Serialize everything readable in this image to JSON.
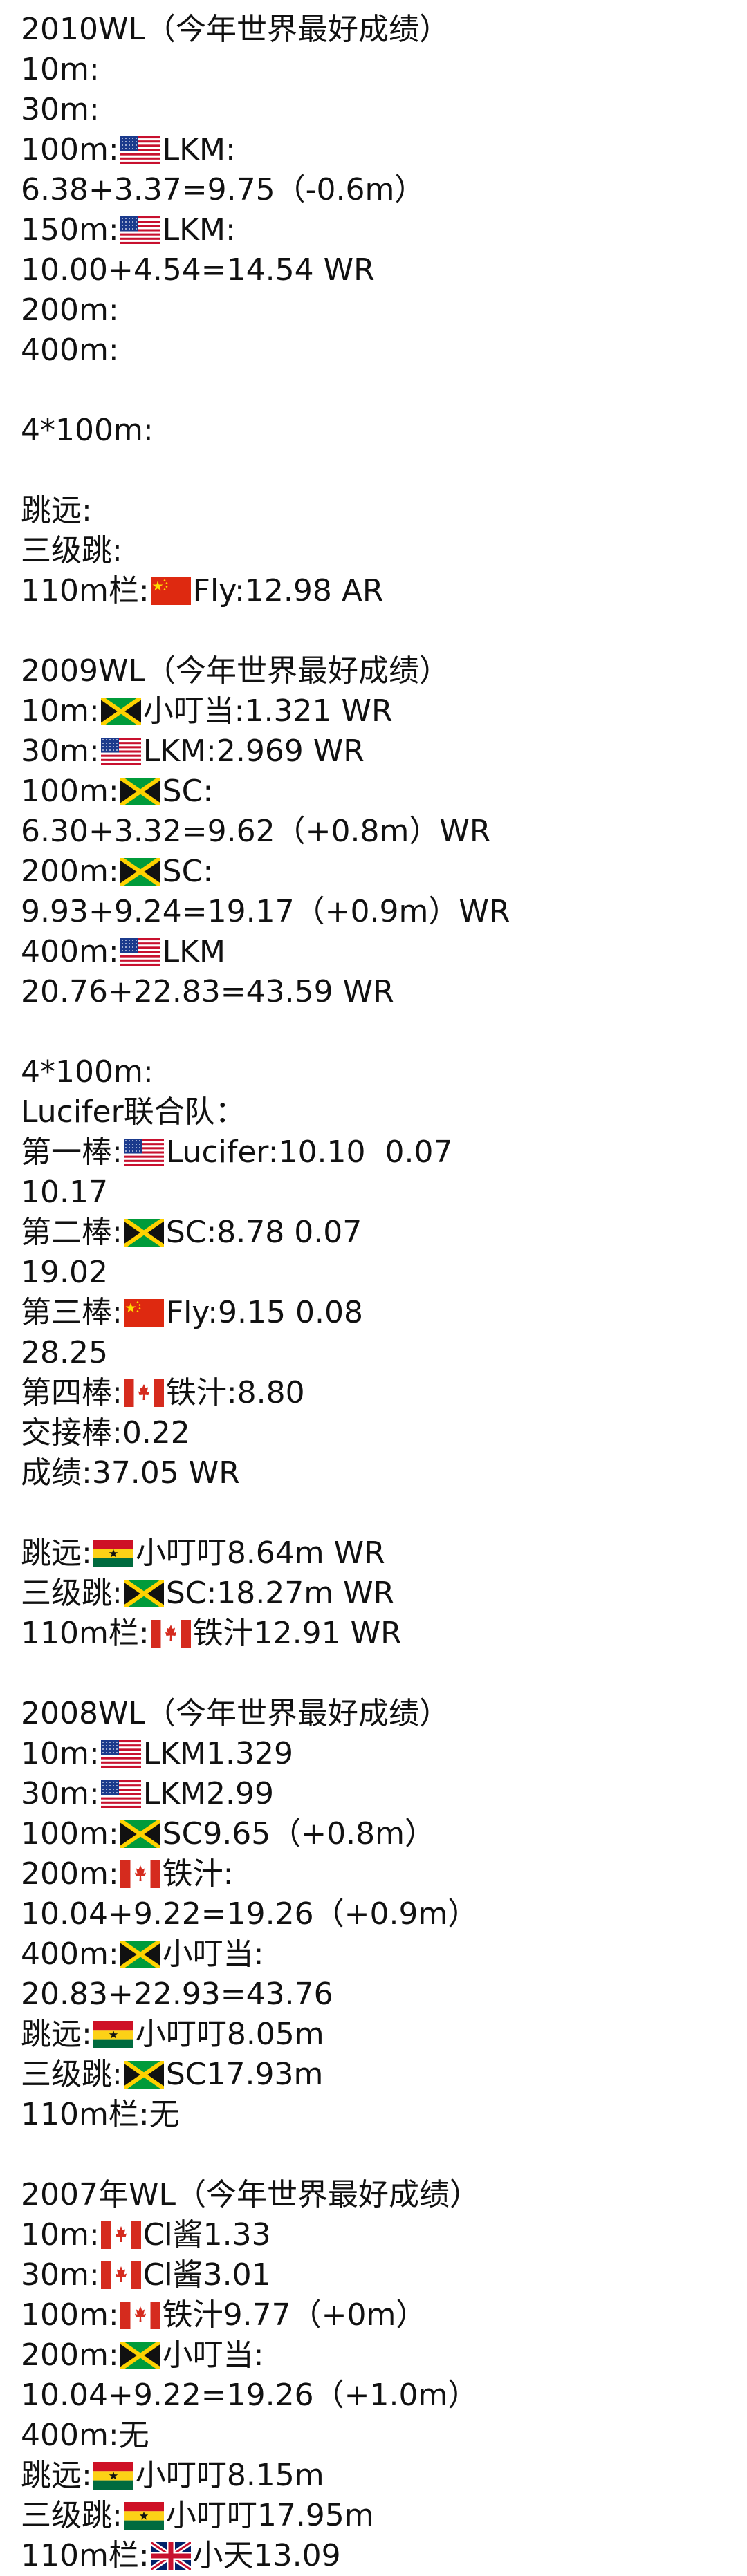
{
  "lines": [
    {
      "text": "2010WL（今年世界最好成绩）"
    },
    {
      "text": "10m:"
    },
    {
      "text": "30m:"
    },
    {
      "pre": "100m:",
      "flag": "usa-flag",
      "post": "LKM:"
    },
    {
      "text": "6.38+3.37=9.75（-0.6m）"
    },
    {
      "pre": "150m:",
      "flag": "usa-flag",
      "post": "LKM:"
    },
    {
      "text": "10.00+4.54=14.54 WR"
    },
    {
      "text": "200m:"
    },
    {
      "text": "400m:"
    },
    {
      "text": ""
    },
    {
      "text": "4*100m:"
    },
    {
      "text": ""
    },
    {
      "text": "跳远:"
    },
    {
      "text": "三级跳:"
    },
    {
      "pre": "110m栏:",
      "flag": "china-flag",
      "post": "Fly:12.98 AR"
    },
    {
      "text": ""
    },
    {
      "text": "2009WL（今年世界最好成绩）"
    },
    {
      "pre": "10m:",
      "flag": "jamaica-flag",
      "post": "小叮当:1.321 WR"
    },
    {
      "pre": "30m:",
      "flag": "usa-flag",
      "post": "LKM:2.969 WR"
    },
    {
      "pre": "100m:",
      "flag": "jamaica-flag",
      "post": "SC:"
    },
    {
      "text": "6.30+3.32=9.62（+0.8m）WR"
    },
    {
      "pre": "200m:",
      "flag": "jamaica-flag",
      "post": "SC:"
    },
    {
      "text": "9.93+9.24=19.17（+0.9m）WR"
    },
    {
      "pre": "400m:",
      "flag": "usa-flag",
      "post": "LKM"
    },
    {
      "text": "20.76+22.83=43.59 WR"
    },
    {
      "text": ""
    },
    {
      "text": "4*100m:"
    },
    {
      "text": "Lucifer联合队："
    },
    {
      "pre": "第一棒:",
      "flag": "usa-flag",
      "post": "Lucifer:10.10  0.07"
    },
    {
      "text": "10.17"
    },
    {
      "pre": "第二棒:",
      "flag": "jamaica-flag",
      "post": "SC:8.78 0.07"
    },
    {
      "text": "19.02"
    },
    {
      "pre": "第三棒:",
      "flag": "china-flag",
      "post": "Fly:9.15 0.08"
    },
    {
      "text": "28.25"
    },
    {
      "pre": "第四棒:",
      "flag": "canada-flag",
      "post": "铁汁:8.80"
    },
    {
      "text": "交接棒:0.22"
    },
    {
      "text": "成绩:37.05 WR"
    },
    {
      "text": ""
    },
    {
      "pre": "跳远:",
      "flag": "ghana-flag",
      "post": "小叮叮8.64m WR"
    },
    {
      "pre": "三级跳:",
      "flag": "jamaica-flag",
      "post": "SC:18.27m WR"
    },
    {
      "pre": "110m栏:",
      "flag": "canada-flag",
      "post": "铁汁12.91 WR"
    },
    {
      "text": ""
    },
    {
      "text": "2008WL（今年世界最好成绩）"
    },
    {
      "pre": "10m:",
      "flag": "usa-flag",
      "post": "LKM1.329"
    },
    {
      "pre": "30m:",
      "flag": "usa-flag",
      "post": "LKM2.99"
    },
    {
      "pre": "100m:",
      "flag": "jamaica-flag",
      "post": "SC9.65（+0.8m）"
    },
    {
      "pre": "200m:",
      "flag": "canada-flag",
      "post": "铁汁:"
    },
    {
      "text": "10.04+9.22=19.26（+0.9m）"
    },
    {
      "pre": "400m:",
      "flag": "jamaica-flag",
      "post": "小叮当:"
    },
    {
      "text": "20.83+22.93=43.76"
    },
    {
      "pre": "跳远:",
      "flag": "ghana-flag",
      "post": "小叮叮8.05m"
    },
    {
      "pre": "三级跳:",
      "flag": "jamaica-flag",
      "post": "SC17.93m"
    },
    {
      "text": "110m栏:无"
    },
    {
      "text": ""
    },
    {
      "text": "2007年WL（今年世界最好成绩）"
    },
    {
      "pre": "10m:",
      "flag": "canada-flag",
      "post": "Cl酱1.33"
    },
    {
      "pre": "30m:",
      "flag": "canada-flag",
      "post": "Cl酱3.01"
    },
    {
      "pre": "100m:",
      "flag": "canada-flag",
      "post": "铁汁9.77（+0m）"
    },
    {
      "pre": "200m:",
      "flag": "jamaica-flag",
      "post": "小叮当:"
    },
    {
      "text": "10.04+9.22=19.26（+1.0m）"
    },
    {
      "text": "400m:无"
    },
    {
      "pre": "跳远:",
      "flag": "ghana-flag",
      "post": "小叮叮8.15m"
    },
    {
      "pre": "三级跳:",
      "flag": "ghana-flag",
      "post": "小叮叮17.95m"
    },
    {
      "pre": "110m栏:",
      "flag": "uk-flag",
      "post": "小天13.09"
    }
  ]
}
